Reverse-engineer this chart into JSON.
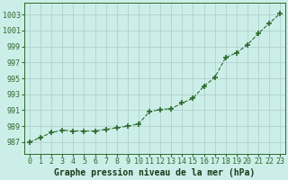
{
  "x": [
    0,
    1,
    2,
    3,
    4,
    5,
    6,
    7,
    8,
    9,
    10,
    11,
    12,
    13,
    14,
    15,
    16,
    17,
    18,
    19,
    20,
    21,
    22,
    23
  ],
  "y": [
    987.0,
    987.6,
    988.2,
    988.5,
    988.4,
    988.4,
    988.4,
    988.6,
    988.8,
    989.0,
    989.3,
    990.8,
    991.1,
    991.2,
    991.9,
    992.5,
    994.0,
    995.1,
    997.6,
    998.2,
    999.2,
    1000.6,
    1001.9,
    1003.1
  ],
  "line_color": "#2d6a2d",
  "marker": "+",
  "marker_size": 4,
  "marker_linewidth": 1.2,
  "xlabel": "Graphe pression niveau de la mer (hPa)",
  "xlabel_fontsize": 7,
  "xlabel_color": "#1a3a1a",
  "ylabel_ticks": [
    987,
    989,
    991,
    993,
    995,
    997,
    999,
    1001,
    1003
  ],
  "ylim": [
    985.5,
    1004.5
  ],
  "xlim": [
    -0.5,
    23.5
  ],
  "bg_color": "#cceee8",
  "grid_color": "#aacccc",
  "tick_fontsize": 6,
  "line_width": 0.8,
  "linestyle": "--"
}
